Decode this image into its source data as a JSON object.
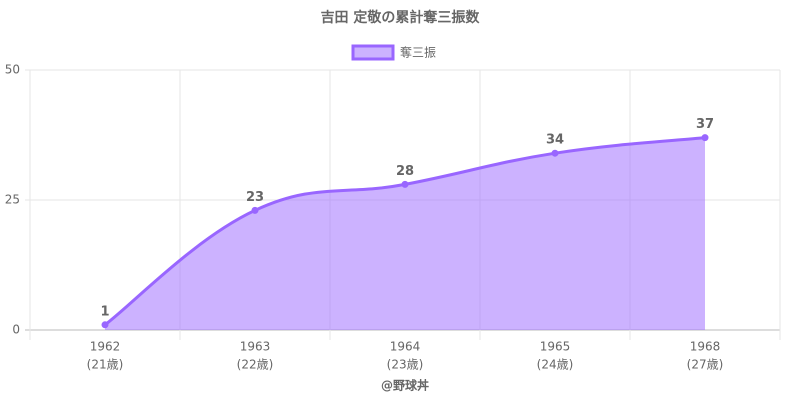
{
  "chart_data": {
    "type": "line",
    "title": "吉田 定敬の累計奪三振数",
    "categories": [
      "1962",
      "1963",
      "1964",
      "1965",
      "1968"
    ],
    "category_ages": [
      "(21歳)",
      "(22歳)",
      "(23歳)",
      "(24歳)",
      "(27歳)"
    ],
    "series": [
      {
        "name": "奪三振",
        "color": "#9966ff",
        "values": [
          1,
          23,
          28,
          34,
          37
        ]
      }
    ],
    "x_label": "@野球丼",
    "ylim": [
      0,
      50
    ],
    "yticks": [
      0,
      25,
      50
    ],
    "grid": true,
    "fill_area": true,
    "legend": "top"
  }
}
